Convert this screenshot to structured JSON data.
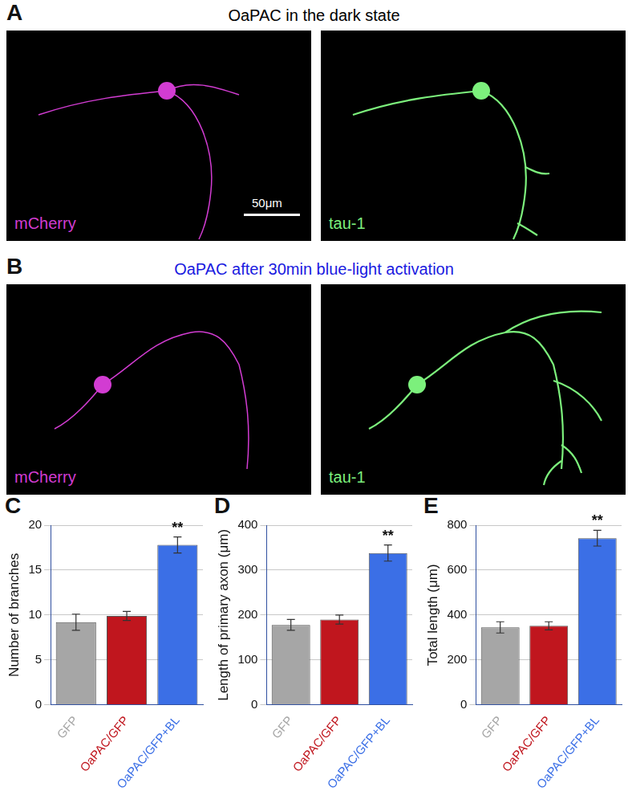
{
  "panels": [
    {
      "letter": "A",
      "title": "OaPAC in the dark state",
      "title_color": "#000000",
      "images": [
        {
          "label": "mCherry",
          "color": "#d23cd2",
          "scale_bar": "50μm"
        },
        {
          "label": "tau-1",
          "color": "#7cf07c"
        }
      ]
    },
    {
      "letter": "B",
      "title": "OaPAC after 30min blue-light activation",
      "title_color": "#1a1ae0",
      "images": [
        {
          "label": "mCherry",
          "color": "#d23cd2"
        },
        {
          "label": "tau-1",
          "color": "#7cf07c"
        }
      ]
    }
  ],
  "chart_data": [
    {
      "letter": "C",
      "type": "bar",
      "y_label": "Number of branches",
      "categories": [
        "GFP",
        "OaPAC/GFP",
        "OaPAC/GFP+BL"
      ],
      "values": [
        9.2,
        9.9,
        17.8
      ],
      "errors": [
        0.9,
        0.5,
        0.9
      ],
      "colors": [
        "#a6a6a6",
        "#c0161e",
        "#3b6fe6"
      ],
      "ylim": [
        0,
        20
      ],
      "yticks": [
        0,
        5,
        10,
        15,
        20
      ],
      "grid": true,
      "annotations": [
        {
          "category": "OaPAC/GFP+BL",
          "text": "**"
        }
      ]
    },
    {
      "letter": "D",
      "type": "bar",
      "y_label": "Length of primary axon (μm)",
      "categories": [
        "GFP",
        "OaPAC/GFP",
        "OaPAC/GFP+BL"
      ],
      "values": [
        178,
        190,
        338
      ],
      "errors": [
        12,
        10,
        18
      ],
      "colors": [
        "#a6a6a6",
        "#c0161e",
        "#3b6fe6"
      ],
      "ylim": [
        0,
        400
      ],
      "yticks": [
        0,
        100,
        200,
        300,
        400
      ],
      "grid": true,
      "annotations": [
        {
          "category": "OaPAC/GFP+BL",
          "text": "**"
        }
      ]
    },
    {
      "letter": "E",
      "type": "bar",
      "y_label": "Total length (μm)",
      "categories": [
        "GFP",
        "OaPAC/GFP",
        "OaPAC/GFP+BL"
      ],
      "values": [
        345,
        352,
        742
      ],
      "errors": [
        25,
        18,
        35
      ],
      "colors": [
        "#a6a6a6",
        "#c0161e",
        "#3b6fe6"
      ],
      "ylim": [
        0,
        800
      ],
      "yticks": [
        0,
        200,
        400,
        600,
        800
      ],
      "grid": true,
      "annotations": [
        {
          "category": "OaPAC/GFP+BL",
          "text": "**"
        }
      ]
    }
  ]
}
